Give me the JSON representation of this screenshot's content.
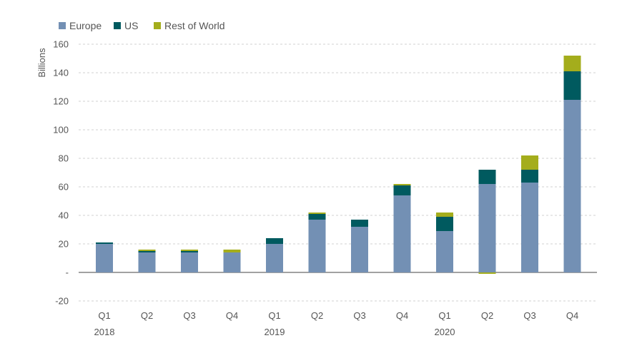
{
  "chart_data": {
    "type": "bar",
    "stacked": true,
    "ylabel": "Billions",
    "ylim": [
      -20,
      160
    ],
    "yticks": [
      {
        "value": 160,
        "label": "160"
      },
      {
        "value": 140,
        "label": "140"
      },
      {
        "value": 120,
        "label": "120"
      },
      {
        "value": 100,
        "label": "100"
      },
      {
        "value": 80,
        "label": "80"
      },
      {
        "value": 60,
        "label": "60"
      },
      {
        "value": 40,
        "label": "40"
      },
      {
        "value": 20,
        "label": "20"
      },
      {
        "value": 0,
        "label": "-"
      },
      {
        "value": -20,
        "label": "-20"
      }
    ],
    "grid": true,
    "legend_position": "top-left",
    "categories": [
      "Q1",
      "Q2",
      "Q3",
      "Q4",
      "Q1",
      "Q2",
      "Q3",
      "Q4",
      "Q1",
      "Q2",
      "Q3",
      "Q4"
    ],
    "year_labels": [
      {
        "index": 0,
        "label": "2018"
      },
      {
        "index": 4,
        "label": "2019"
      },
      {
        "index": 8,
        "label": "2020"
      }
    ],
    "series": [
      {
        "name": "Europe",
        "color": "#7390b4",
        "values": [
          20,
          14,
          14,
          14,
          20,
          37,
          32,
          54,
          29,
          62,
          63,
          121
        ]
      },
      {
        "name": "US",
        "color": "#005a5f",
        "values": [
          1,
          1,
          1,
          0,
          4,
          4,
          5,
          7,
          10,
          10,
          9,
          20
        ]
      },
      {
        "name": "Rest of World",
        "color": "#a4ad1c",
        "values": [
          0,
          1,
          1,
          2,
          0,
          1,
          0,
          1,
          3,
          -1,
          10,
          11
        ]
      }
    ]
  }
}
